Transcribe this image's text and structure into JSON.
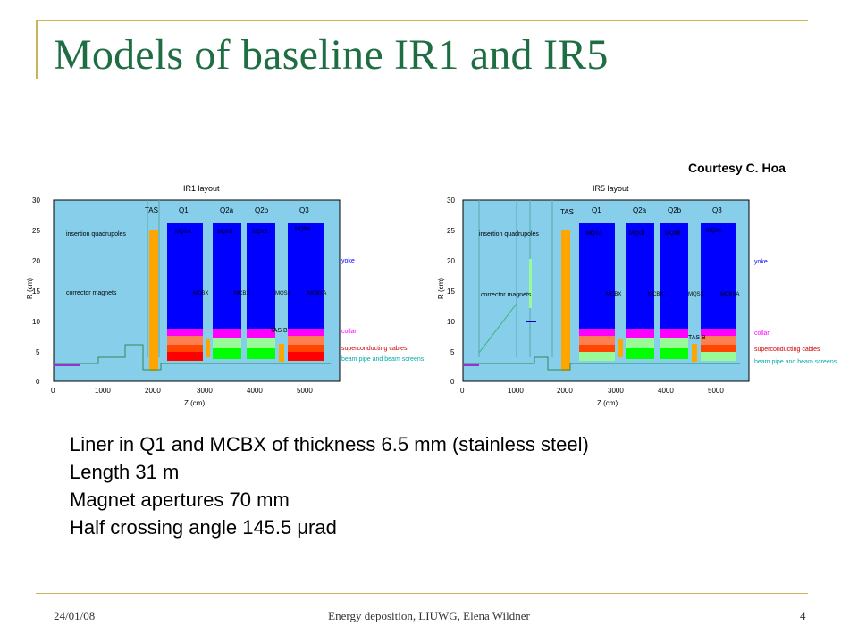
{
  "slide": {
    "title": "Models of baseline IR1 and IR5",
    "courtesy": "Courtesy C. Hoa",
    "bullets": [
      "Liner in Q1 and MCBX of thickness 6.5 mm (stainless steel)",
      "Length 31 m",
      "Magnet apertures 70 mm",
      "Half crossing angle 145.5 μrad"
    ],
    "footer": {
      "date": "24/01/08",
      "center": "Energy deposition, LIUWG, Elena Wildner",
      "page": "4"
    }
  },
  "diagrams": [
    {
      "title": "IR1 layout",
      "xlabel": "Z (cm)",
      "ylabel": "R (cm)",
      "xticks": [
        "0",
        "1000",
        "2000",
        "3000",
        "4000",
        "5000"
      ],
      "yticks": [
        "0",
        "5",
        "10",
        "15",
        "20",
        "25",
        "30"
      ],
      "magnet_labels": [
        "TAS",
        "Q1",
        "Q2a",
        "Q2b",
        "Q3"
      ],
      "inner_labels": [
        "MQXA",
        "MQXB",
        "MQXB",
        "MQXA",
        "MCBX",
        "MCBX",
        "MQSX",
        "MCBXA",
        "TAS B"
      ],
      "region_labels": [
        "insertion quadrupoles",
        "corrector magnets"
      ],
      "legend": [
        "yoke",
        "collar",
        "superconducting cables",
        "beam pipe and beam screens"
      ]
    },
    {
      "title": "IR5 layout",
      "xlabel": "Z (cm)",
      "ylabel": "R (cm)",
      "xticks": [
        "0",
        "1000",
        "2000",
        "3000",
        "4000",
        "5000"
      ],
      "yticks": [
        "0",
        "5",
        "10",
        "15",
        "20",
        "25",
        "30"
      ],
      "magnet_labels": [
        "TAS",
        "Q1",
        "Q2a",
        "Q2b",
        "Q3"
      ],
      "inner_labels": [
        "MQXA",
        "MQXB",
        "MQXB",
        "MQXA",
        "MCBX",
        "MCBX",
        "MQSX",
        "MCBXA",
        "TAS B"
      ],
      "region_labels": [
        "insertion quadrupoles",
        "corrector magnets"
      ],
      "legend": [
        "yoke",
        "collar",
        "superconducting cables",
        "beam pipe and beam screens"
      ]
    }
  ],
  "colors": {
    "title": "#1f6e43",
    "frame": "#c9b458",
    "background_region": "#87ceeb",
    "yoke": "#0000ff",
    "collar": "#ff00ff",
    "cables": "#ff7f50",
    "cables_inner": "#ff0000",
    "beam_pipe": "#00ff00",
    "tas": "#ffa500",
    "legend_yoke": "#0000ff",
    "legend_collar": "#ff00ff",
    "legend_cables": "#cc0000",
    "legend_beam": "#00aaaa"
  }
}
